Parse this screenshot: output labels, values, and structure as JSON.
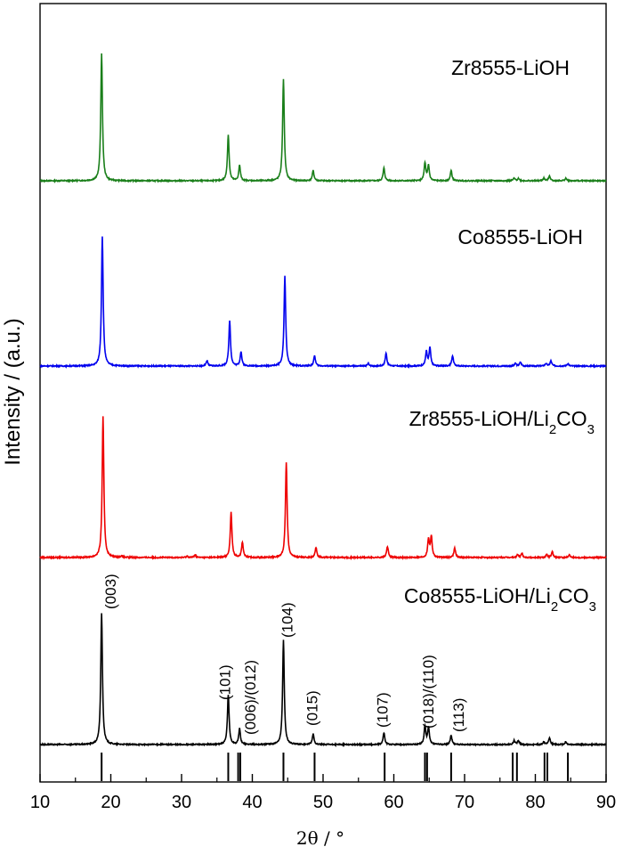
{
  "chart_data": {
    "type": "line",
    "xlabel": "2θ / °",
    "ylabel": "Intensity / (a.u.)",
    "xlim": [
      10,
      90
    ],
    "x_ticks": [
      "10",
      "20",
      "30",
      "40",
      "50",
      "60",
      "70",
      "80",
      "90"
    ],
    "series": [
      {
        "name": "Zr8555-LiOH",
        "label_main": "Zr8555-LiOH",
        "label_sub": "",
        "label_tail": "",
        "color": "#1a7f1a",
        "peaks": [
          [
            18.7,
            100
          ],
          [
            36.6,
            36
          ],
          [
            38.2,
            12
          ],
          [
            44.4,
            80
          ],
          [
            48.6,
            8
          ],
          [
            58.6,
            10
          ],
          [
            64.4,
            14
          ],
          [
            64.9,
            12
          ],
          [
            68.1,
            8
          ],
          [
            77.0,
            2
          ],
          [
            77.6,
            2
          ],
          [
            81.2,
            2
          ],
          [
            82.0,
            4
          ],
          [
            84.3,
            2
          ]
        ]
      },
      {
        "name": "Co8555-LiOH",
        "label_main": "Co8555-LiOH",
        "label_sub": "",
        "label_tail": "",
        "color": "#0000ee",
        "peaks": [
          [
            18.8,
            100
          ],
          [
            33.6,
            4
          ],
          [
            36.8,
            35
          ],
          [
            38.4,
            11
          ],
          [
            44.6,
            69
          ],
          [
            48.8,
            8
          ],
          [
            56.4,
            2
          ],
          [
            58.9,
            10
          ],
          [
            64.6,
            11
          ],
          [
            65.1,
            14
          ],
          [
            68.3,
            8
          ],
          [
            77.2,
            2
          ],
          [
            77.9,
            3
          ],
          [
            81.5,
            2
          ],
          [
            82.2,
            4
          ],
          [
            84.6,
            2
          ]
        ]
      },
      {
        "name": "Zr8555-LiOH/Li2CO3",
        "label_main": "Zr8555-LiOH/Li",
        "label_sub": "2",
        "label_tail": "CO",
        "label_sub2": "3",
        "color": "#ee0000",
        "peaks": [
          [
            18.9,
            100
          ],
          [
            21.5,
            1
          ],
          [
            30.8,
            1
          ],
          [
            31.9,
            2
          ],
          [
            37.0,
            32
          ],
          [
            38.6,
            11
          ],
          [
            44.8,
            68
          ],
          [
            49.0,
            7
          ],
          [
            59.1,
            8
          ],
          [
            64.9,
            13
          ],
          [
            65.3,
            15
          ],
          [
            68.6,
            7
          ],
          [
            77.5,
            2
          ],
          [
            78.1,
            3
          ],
          [
            81.6,
            2
          ],
          [
            82.4,
            4
          ],
          [
            84.8,
            2
          ]
        ]
      },
      {
        "name": "Co8555-LiOH/Li2CO3",
        "label_main": "Co8555-LiOH/Li",
        "label_sub": "2",
        "label_tail": "CO",
        "label_sub2": "3",
        "color": "#000000",
        "peaks": [
          [
            18.7,
            100
          ],
          [
            36.6,
            38
          ],
          [
            38.2,
            12
          ],
          [
            44.4,
            79
          ],
          [
            48.6,
            8
          ],
          [
            58.6,
            9
          ],
          [
            64.4,
            14
          ],
          [
            64.9,
            13
          ],
          [
            68.1,
            7
          ],
          [
            77.0,
            3
          ],
          [
            77.6,
            3
          ],
          [
            81.2,
            2
          ],
          [
            82.0,
            5
          ],
          [
            84.3,
            2
          ]
        ]
      }
    ],
    "reference_lines": [
      18.7,
      36.6,
      38.0,
      38.3,
      44.4,
      48.8,
      58.7,
      64.4,
      64.7,
      68.1,
      76.8,
      77.4,
      81.3,
      81.7,
      84.6
    ],
    "annotations": [
      {
        "x": 18.7,
        "text": "(003)"
      },
      {
        "x": 36.6,
        "text": "(101)"
      },
      {
        "x": 38.2,
        "text": "(006)/(012)"
      },
      {
        "x": 44.4,
        "text": "(104)"
      },
      {
        "x": 48.7,
        "text": "(015)"
      },
      {
        "x": 58.6,
        "text": "(107)"
      },
      {
        "x": 64.6,
        "text": "(018)/(110)"
      },
      {
        "x": 68.1,
        "text": "(113)"
      }
    ]
  }
}
